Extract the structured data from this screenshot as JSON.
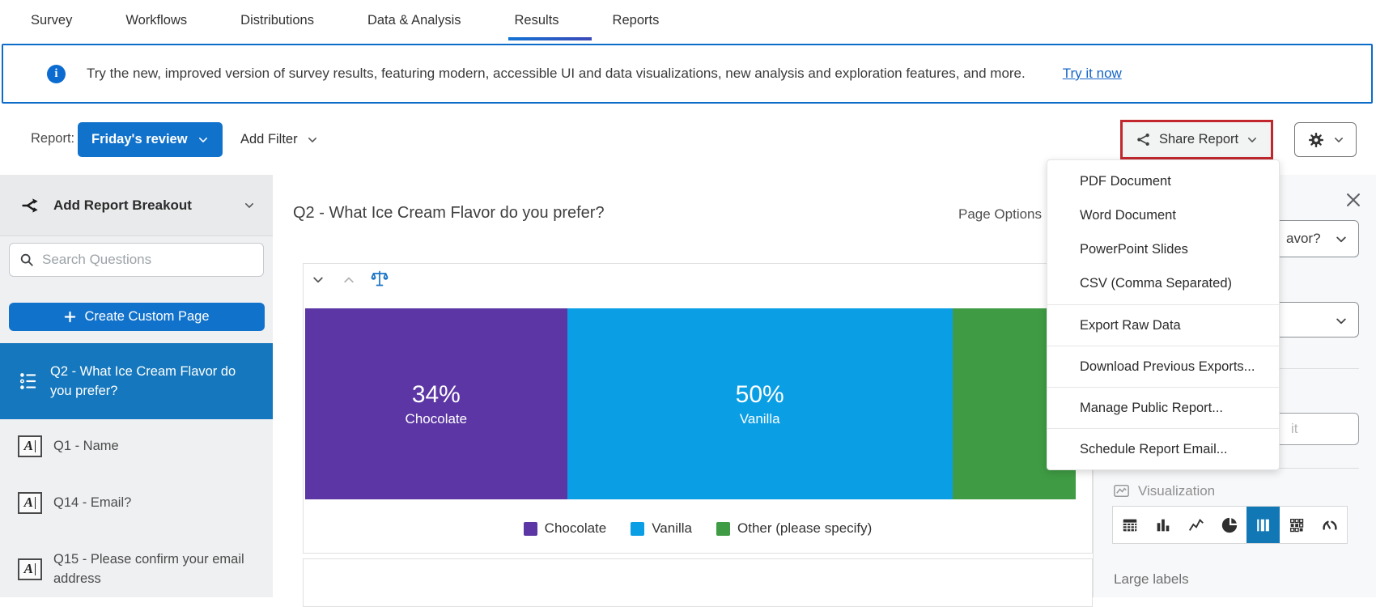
{
  "nav": {
    "tabs": [
      "Survey",
      "Workflows",
      "Distributions",
      "Data & Analysis",
      "Results",
      "Reports"
    ],
    "active_tab": "Results"
  },
  "banner": {
    "message": "Try the new, improved version of survey results, featuring modern, accessible UI and data visualizations, new analysis and exploration features, and more.",
    "link_label": "Try it now"
  },
  "toolbar": {
    "report_label": "Report:",
    "report_name": "Friday's review",
    "add_filter_label": "Add Filter",
    "share_report_label": "Share Report"
  },
  "share_menu": {
    "groups": [
      {
        "items": [
          "PDF Document",
          "Word Document",
          "PowerPoint Slides",
          "CSV (Comma Separated)"
        ]
      },
      {
        "items": [
          "Export Raw Data"
        ]
      },
      {
        "items": [
          "Download Previous Exports..."
        ]
      },
      {
        "items": [
          "Manage Public Report..."
        ]
      },
      {
        "items": [
          "Schedule Report Email..."
        ]
      }
    ]
  },
  "sidebar": {
    "breakout_label": "Add Report Breakout",
    "search_placeholder": "Search Questions",
    "create_page_plus": "+",
    "create_page_label": "Create Custom Page",
    "items": [
      {
        "label": "Q2 - What Ice Cream Flavor do you prefer?",
        "icon": "multiple-choice",
        "selected": true
      },
      {
        "label": "Q1 - Name",
        "icon": "text-entry",
        "selected": false
      },
      {
        "label": "Q14 - Email?",
        "icon": "text-entry",
        "selected": false
      },
      {
        "label": "Q15 - Please confirm your email address",
        "icon": "text-entry",
        "selected": false
      }
    ]
  },
  "main": {
    "question_title": "Q2 - What Ice Cream Flavor do you prefer?",
    "page_options_label": "Page Options"
  },
  "chart_data": {
    "type": "bar",
    "subtype": "horizontal-stacked",
    "categories": [
      "Chocolate",
      "Vanilla",
      "Other (please specify)"
    ],
    "values": [
      34,
      50,
      16
    ],
    "unit": "%",
    "colors": [
      "#5B36A4",
      "#0A9EE5",
      "#3F9C44"
    ],
    "segment_labels_visible": [
      "Chocolate",
      "Vanilla"
    ],
    "legend": [
      "Chocolate",
      "Vanilla",
      "Other (please specify)"
    ],
    "legend_position": "bottom",
    "axes": "none"
  },
  "right_panel": {
    "question_dropdown_visible_text": "avor?",
    "text_field_visible_text": "it",
    "visualization_label": "Visualization",
    "viz_options": [
      "data-table",
      "bar-chart",
      "line-chart",
      "pie-chart",
      "stacked-bar",
      "results-grid",
      "gauge"
    ],
    "selected_viz": "stacked-bar",
    "large_labels_label": "Large labels"
  },
  "icons": {
    "info": "info-circle",
    "share": "share-nodes",
    "gear": "settings-gear",
    "chevron": "chevron-down",
    "search": "magnifier",
    "breakout": "split-arrows",
    "scales": "balance-scales",
    "close": "x-close",
    "visualization": "image-chart"
  },
  "colors": {
    "accent_blue": "#1172CC",
    "selected_item_blue": "#1577BD",
    "viz_selected_blue": "#1178B5",
    "banner_border_blue": "#0E6CC9",
    "annotation_red": "#C1272D",
    "link_blue": "#1565C7"
  }
}
